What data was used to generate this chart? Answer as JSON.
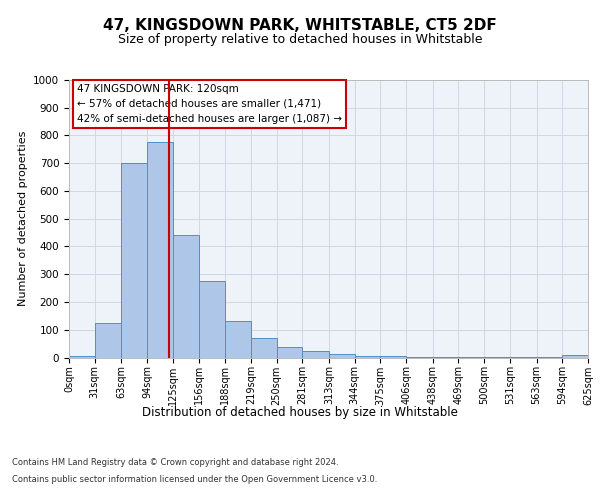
{
  "title": "47, KINGSDOWN PARK, WHITSTABLE, CT5 2DF",
  "subtitle": "Size of property relative to detached houses in Whitstable",
  "xlabel": "Distribution of detached houses by size in Whitstable",
  "ylabel": "Number of detached properties",
  "property_label": "47 KINGSDOWN PARK: 120sqm",
  "annotation_line1": "← 57% of detached houses are smaller (1,471)",
  "annotation_line2": "42% of semi-detached houses are larger (1,087) →",
  "footer_line1": "Contains HM Land Registry data © Crown copyright and database right 2024.",
  "footer_line2": "Contains public sector information licensed under the Open Government Licence v3.0.",
  "bin_edges": [
    0,
    31,
    63,
    94,
    125,
    156,
    188,
    219,
    250,
    281,
    313,
    344,
    375,
    406,
    438,
    469,
    500,
    531,
    563,
    594,
    625
  ],
  "bin_counts": [
    5,
    125,
    700,
    775,
    440,
    275,
    130,
    70,
    38,
    22,
    12,
    7,
    4,
    3,
    3,
    2,
    2,
    1,
    1,
    10
  ],
  "bar_color": "#aec6e8",
  "bar_edge_color": "#4f90c8",
  "vline_color": "#cc0000",
  "vline_x": 120,
  "ylim": [
    0,
    1000
  ],
  "yticks": [
    0,
    100,
    200,
    300,
    400,
    500,
    600,
    700,
    800,
    900,
    1000
  ],
  "grid_color": "#d0d8e8",
  "bg_color": "#eef2f9",
  "title_fontsize": 11,
  "subtitle_fontsize": 9
}
